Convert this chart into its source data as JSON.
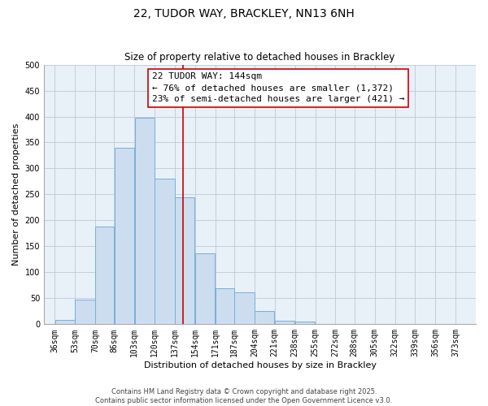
{
  "title": "22, TUDOR WAY, BRACKLEY, NN13 6NH",
  "subtitle": "Size of property relative to detached houses in Brackley",
  "xlabel": "Distribution of detached houses by size in Brackley",
  "ylabel": "Number of detached properties",
  "bar_left_edges": [
    36,
    53,
    70,
    86,
    103,
    120,
    137,
    154,
    171,
    187,
    204,
    221,
    238,
    255,
    272,
    288,
    305,
    322,
    339,
    356
  ],
  "bar_widths": [
    17,
    17,
    16,
    17,
    17,
    17,
    17,
    17,
    16,
    17,
    17,
    17,
    17,
    17,
    16,
    17,
    17,
    17,
    17,
    17
  ],
  "bar_heights": [
    8,
    47,
    188,
    340,
    398,
    280,
    245,
    137,
    70,
    62,
    25,
    7,
    5,
    0,
    0,
    0,
    0,
    0,
    0,
    0
  ],
  "tick_labels": [
    "36sqm",
    "53sqm",
    "70sqm",
    "86sqm",
    "103sqm",
    "120sqm",
    "137sqm",
    "154sqm",
    "171sqm",
    "187sqm",
    "204sqm",
    "221sqm",
    "238sqm",
    "255sqm",
    "272sqm",
    "288sqm",
    "305sqm",
    "322sqm",
    "339sqm",
    "356sqm",
    "373sqm"
  ],
  "tick_positions": [
    36,
    53,
    70,
    86,
    103,
    120,
    137,
    154,
    171,
    187,
    204,
    221,
    238,
    255,
    272,
    288,
    305,
    322,
    339,
    356,
    373
  ],
  "bar_color": "#ccddf0",
  "bar_edge_color": "#7aafd4",
  "vline_x": 144,
  "vline_color": "#cc0000",
  "ylim": [
    0,
    500
  ],
  "xlim": [
    27,
    390
  ],
  "yticks": [
    0,
    50,
    100,
    150,
    200,
    250,
    300,
    350,
    400,
    450,
    500
  ],
  "annotation_title": "22 TUDOR WAY: 144sqm",
  "annotation_line1": "← 76% of detached houses are smaller (1,372)",
  "annotation_line2": "23% of semi-detached houses are larger (421) →",
  "footnote1": "Contains HM Land Registry data © Crown copyright and database right 2025.",
  "footnote2": "Contains public sector information licensed under the Open Government Licence v3.0.",
  "bg_color": "#e8f0f8",
  "title_fontsize": 10,
  "axis_label_fontsize": 8,
  "tick_fontsize": 7,
  "annotation_fontsize": 8,
  "footnote_fontsize": 6
}
